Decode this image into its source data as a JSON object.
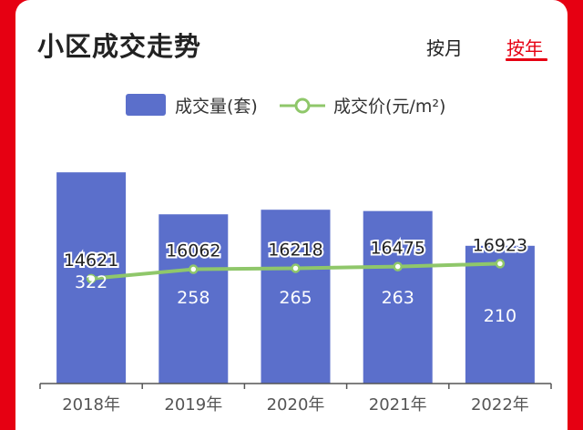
{
  "header": {
    "title": "小区成交走势",
    "tab_month": "按月",
    "tab_year": "按年"
  },
  "colors": {
    "brand": "#e60012",
    "bar": "#5b6fcb",
    "line": "#8fc76a"
  },
  "chart_data": {
    "type": "bar",
    "categories": [
      "2018年",
      "2019年",
      "2020年",
      "2021年",
      "2022年"
    ],
    "series": [
      {
        "name": "成交量(套)",
        "type": "bar",
        "values": [
          322,
          258,
          265,
          263,
          210
        ]
      },
      {
        "name": "成交价(元/m²)",
        "type": "line",
        "values": [
          14621,
          16062,
          16218,
          16475,
          16923
        ]
      }
    ],
    "legend": "top-center",
    "grid": false
  }
}
